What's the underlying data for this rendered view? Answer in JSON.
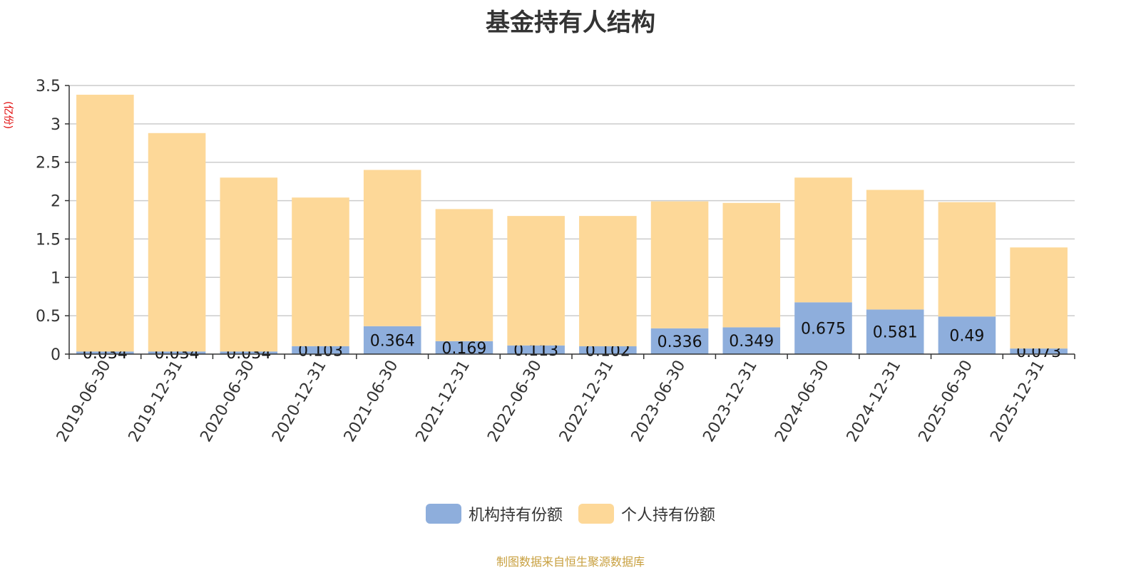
{
  "title": "基金持有人结构",
  "source_text": "制图数据来自恒生聚源数据库",
  "chart_data": {
    "type": "bar",
    "stacked": true,
    "unit_label": "(亿份)",
    "categories": [
      "2019-06-30",
      "2019-12-31",
      "2020-06-30",
      "2020-12-31",
      "2021-06-30",
      "2021-12-31",
      "2022-06-30",
      "2022-12-31",
      "2023-06-30",
      "2023-12-31",
      "2024-06-30",
      "2024-12-31",
      "2025-06-30",
      "2025-12-31"
    ],
    "series": [
      {
        "name": "机构持有份额",
        "color": "#8eaedc",
        "values": [
          0.034,
          0.034,
          0.034,
          0.103,
          0.364,
          0.169,
          0.113,
          0.102,
          0.336,
          0.349,
          0.675,
          0.581,
          0.49,
          0.073
        ],
        "show_labels": true
      },
      {
        "name": "个人持有份额",
        "color": "#fdd898",
        "values": [
          3.346,
          2.846,
          2.266,
          1.937,
          2.036,
          1.721,
          1.687,
          1.698,
          1.654,
          1.621,
          1.625,
          1.559,
          1.49,
          1.317
        ],
        "show_labels": false
      }
    ],
    "ylim": [
      0,
      3.5
    ],
    "yticks": [
      "0",
      "0.5",
      "1",
      "1.5",
      "2",
      "2.5",
      "3",
      "3.5"
    ],
    "grid": true,
    "legend_position": "bottom-center"
  }
}
